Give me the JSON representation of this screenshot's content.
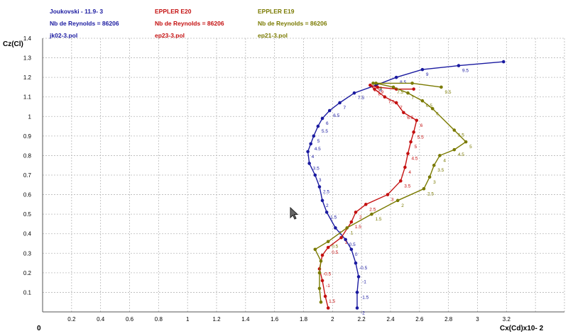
{
  "header": {
    "legend": [
      {
        "name": "Joukovski - 11.9- 3",
        "reynolds": "Nb de Reynolds = 86206",
        "file": "jk02-3.pol",
        "color": "#1a1aa0"
      },
      {
        "name": "EPPLER E20",
        "reynolds": "Nb de Reynolds = 86206",
        "file": "ep23-3.pol",
        "color": "#c41010"
      },
      {
        "name": "EPPLER E19",
        "reynolds": "Nb de Reynolds = 86206",
        "file": "ep21-3.pol",
        "color": "#7a7a00"
      }
    ]
  },
  "axes": {
    "ylabel": "Cz(Cl)",
    "xlabel": "Cx(Cd)x10- 2",
    "origin": "0",
    "x_ticks": [
      "0.2",
      "0.4",
      "0.6",
      "0.8",
      "1",
      "1.2",
      "1.4",
      "1.6",
      "1.8",
      "2",
      "2.2",
      "2.4",
      "2.6",
      "2.8",
      "3",
      "3.2"
    ],
    "y_ticks": [
      "0.1",
      "0.2",
      "0.3",
      "0.4",
      "0.5",
      "0.6",
      "0.7",
      "0.8",
      "0.9",
      "1",
      "1.1",
      "1.2",
      "1.3",
      "1.4"
    ]
  },
  "chart_data": {
    "type": "line",
    "xlabel": "Cx(Cd)x10- 2",
    "ylabel": "Cz(Cl)",
    "xlim": [
      0,
      3.6
    ],
    "ylim": [
      0,
      1.4
    ],
    "grid": true,
    "series": [
      {
        "name": "Joukovski - 11.9- 3",
        "color": "#1a1aa0",
        "x": [
          2.17,
          2.17,
          2.18,
          2.16,
          2.13,
          2.09,
          2.02,
          1.96,
          1.93,
          1.91,
          1.88,
          1.84,
          1.83,
          1.85,
          1.87,
          1.9,
          1.93,
          1.98,
          2.05,
          2.15,
          2.3,
          2.44,
          2.62,
          2.87,
          3.18
        ],
        "y": [
          0.02,
          0.1,
          0.18,
          0.25,
          0.32,
          0.37,
          0.43,
          0.51,
          0.57,
          0.64,
          0.7,
          0.76,
          0.82,
          0.86,
          0.9,
          0.95,
          0.99,
          1.03,
          1.07,
          1.12,
          1.16,
          1.2,
          1.24,
          1.26,
          1.28
        ],
        "labels": [
          "-2",
          "-1.5",
          "-1",
          "-0.5",
          "0",
          "0.5",
          "1",
          "1.5",
          "2",
          "2.5",
          "3",
          "3.5",
          "4",
          "4.5",
          "5",
          "5.5",
          "6",
          "6.5",
          "7",
          "7.5",
          "8",
          "8.5",
          "9",
          "9.5",
          ""
        ]
      },
      {
        "name": "EPPLER E20",
        "color": "#c41010",
        "x": [
          1.97,
          1.95,
          1.93,
          1.91,
          1.93,
          1.97,
          2.06,
          2.13,
          2.16,
          2.23,
          2.38,
          2.47,
          2.5,
          2.52,
          2.54,
          2.56,
          2.58,
          2.49,
          2.44,
          2.36,
          2.29,
          2.26,
          2.31,
          2.44,
          2.56
        ],
        "y": [
          0.02,
          0.08,
          0.16,
          0.22,
          0.29,
          0.33,
          0.38,
          0.46,
          0.51,
          0.55,
          0.6,
          0.67,
          0.74,
          0.81,
          0.87,
          0.92,
          0.98,
          1.02,
          1.07,
          1.1,
          1.14,
          1.16,
          1.15,
          1.14,
          1.14
        ],
        "labels": [
          "",
          "1.5",
          "-1",
          "-0.5",
          "",
          "0.5",
          "1",
          "1.5",
          "2",
          "2.5",
          "3",
          "3.5",
          "4",
          "4.5",
          "5",
          "5.5",
          "6",
          "6.5",
          "7",
          "7.5",
          "8",
          "8.5",
          "9",
          "",
          ""
        ]
      },
      {
        "name": "EPPLER E19",
        "color": "#7a7a00",
        "x": [
          1.92,
          1.91,
          1.91,
          1.92,
          1.88,
          1.97,
          2.1,
          2.27,
          2.45,
          2.63,
          2.67,
          2.7,
          2.74,
          2.84,
          2.92,
          2.84,
          2.69,
          2.62,
          2.52,
          2.42,
          2.3,
          2.28,
          2.55,
          2.75
        ],
        "y": [
          0.05,
          0.12,
          0.2,
          0.26,
          0.32,
          0.36,
          0.43,
          0.5,
          0.57,
          0.63,
          0.69,
          0.75,
          0.8,
          0.83,
          0.87,
          0.93,
          1.04,
          1.08,
          1.12,
          1.15,
          1.17,
          1.17,
          1.17,
          1.15
        ],
        "labels": [
          "",
          "",
          "",
          "",
          "",
          "0.5",
          "1",
          "1.5",
          "2",
          "2.5",
          "3",
          "3.5",
          "4",
          "4.5",
          "5",
          "5.5",
          "6",
          "6.5",
          "7",
          "7.5",
          "8",
          "",
          "",
          "9.5"
        ]
      }
    ]
  }
}
